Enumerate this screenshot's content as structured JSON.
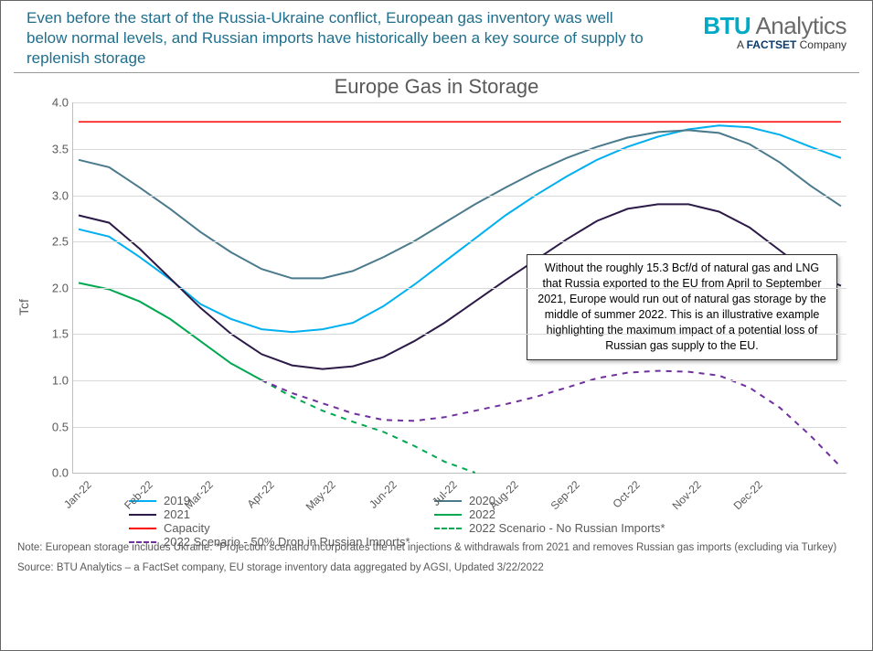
{
  "header": {
    "title": "Even before the start of the Russia-Ukraine conflict, European gas inventory was well below normal levels, and Russian imports have historically been a key source of supply to replenish storage",
    "logo_btu": "BTU",
    "logo_rest": " Analytics",
    "logo_sub_a": "A ",
    "logo_sub_fs": "FACTSET",
    "logo_sub_co": " Company"
  },
  "chart": {
    "title": "Europe Gas in Storage",
    "ylabel": "Tcf",
    "ylim": [
      0,
      4.0
    ],
    "ytick_step": 0.5,
    "grid_color": "#d9d9d9",
    "axis_color": "#bfbfbf",
    "background_color": "#ffffff",
    "x_labels": [
      "Jan-22",
      "Feb-22",
      "Mar-22",
      "Apr-22",
      "May-22",
      "Jun-22",
      "Jul-22",
      "Aug-22",
      "Sep-22",
      "Oct-22",
      "Nov-22",
      "Dec-22"
    ],
    "series": [
      {
        "name": "2019",
        "color": "#00b0f0",
        "dash": "none",
        "width": 2,
        "data": [
          2.63,
          2.55,
          2.33,
          2.09,
          1.82,
          1.66,
          1.55,
          1.52,
          1.55,
          1.62,
          1.8,
          2.03,
          2.28,
          2.53,
          2.78,
          3.0,
          3.2,
          3.38,
          3.52,
          3.63,
          3.71,
          3.75,
          3.73,
          3.65,
          3.52,
          3.4
        ]
      },
      {
        "name": "2020",
        "color": "#4a7a8c",
        "dash": "none",
        "width": 2,
        "data": [
          3.38,
          3.3,
          3.08,
          2.85,
          2.6,
          2.38,
          2.2,
          2.1,
          2.1,
          2.18,
          2.33,
          2.5,
          2.7,
          2.9,
          3.08,
          3.25,
          3.4,
          3.52,
          3.62,
          3.68,
          3.7,
          3.67,
          3.55,
          3.35,
          3.1,
          2.88
        ]
      },
      {
        "name": "2021",
        "color": "#2c1a47",
        "dash": "none",
        "width": 2,
        "data": [
          2.78,
          2.7,
          2.42,
          2.1,
          1.78,
          1.5,
          1.28,
          1.16,
          1.12,
          1.15,
          1.25,
          1.42,
          1.62,
          1.85,
          2.08,
          2.3,
          2.52,
          2.72,
          2.85,
          2.9,
          2.9,
          2.82,
          2.65,
          2.4,
          2.15,
          2.02
        ]
      },
      {
        "name": "2022",
        "color": "#00a84f",
        "dash": "none",
        "width": 2,
        "data": [
          2.05,
          1.98,
          1.85,
          1.66,
          1.42,
          1.18,
          1.0
        ]
      },
      {
        "name": "Capacity",
        "color": "#ff0000",
        "dash": "none",
        "width": 1.5,
        "data": [
          3.79,
          3.79,
          3.79,
          3.79,
          3.79,
          3.79,
          3.79,
          3.79,
          3.79,
          3.79,
          3.79,
          3.79,
          3.79,
          3.79,
          3.79,
          3.79,
          3.79,
          3.79,
          3.79,
          3.79,
          3.79,
          3.79,
          3.79,
          3.79,
          3.79,
          3.79
        ]
      },
      {
        "name": "2022 Scenario - No Russian Imports*",
        "color": "#00a84f",
        "dash": "6,6",
        "width": 2,
        "data": [
          null,
          null,
          null,
          null,
          null,
          null,
          1.0,
          0.82,
          0.67,
          0.55,
          0.44,
          0.29,
          0.12,
          0.0
        ]
      },
      {
        "name": "2022 Scenario - 50% Drop in Russian Imports*",
        "color": "#7030a0",
        "dash": "6,6",
        "width": 2,
        "data": [
          null,
          null,
          null,
          null,
          null,
          null,
          1.0,
          0.86,
          0.75,
          0.64,
          0.57,
          0.56,
          0.6,
          0.67,
          0.74,
          0.82,
          0.92,
          1.02,
          1.08,
          1.1,
          1.09,
          1.05,
          0.92,
          0.7,
          0.4,
          0.06
        ]
      }
    ],
    "annotation_text": "Without the roughly 15.3 Bcf/d of natural gas and LNG that Russia exported to the EU from April to September 2021, Europe would run out of natural gas storage by the middle of summer 2022. This is an illustrative example highlighting the maximum impact of a potential loss of Russian gas supply to the EU.",
    "legend_items": [
      {
        "label": "2019",
        "color": "#00b0f0",
        "dash": "solid"
      },
      {
        "label": "2020",
        "color": "#4a7a8c",
        "dash": "solid"
      },
      {
        "label": "2021",
        "color": "#2c1a47",
        "dash": "solid"
      },
      {
        "label": "2022",
        "color": "#00a84f",
        "dash": "solid"
      },
      {
        "label": "Capacity",
        "color": "#ff0000",
        "dash": "solid"
      },
      {
        "label": "2022 Scenario - No Russian Imports*",
        "color": "#00a84f",
        "dash": "dashed"
      },
      {
        "label": "2022 Scenario - 50% Drop in Russian Imports*",
        "color": "#7030a0",
        "dash": "dashed"
      }
    ]
  },
  "footnotes": {
    "note": "Note: European storage includes Ukraine. *Projection scenario incorporates the net injections & withdrawals from 2021 and removes Russian gas imports (excluding via Turkey)",
    "source": "Source: BTU Analytics – a FactSet company, EU storage inventory data aggregated by AGSI, Updated 3/22/2022"
  }
}
